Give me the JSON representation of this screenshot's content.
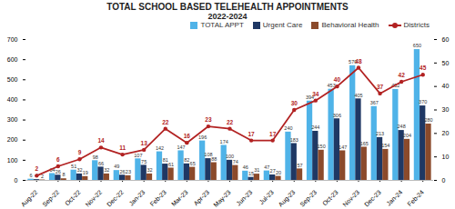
{
  "chart_data": {
    "type": "bar",
    "title": "TOTAL SCHOOL BASED TELEHEALTH APPOINTMENTS",
    "subtitle": "2022-2024",
    "categories": [
      "Aug-22",
      "Sep-22",
      "Oct-22",
      "Nov-22",
      "Dec-22",
      "Jan-23",
      "Feb-23",
      "Mar-23",
      "Apr-23",
      "May-23",
      "Jun-23",
      "Jul-23",
      "Aug-23",
      "Sep-23",
      "Oct-23",
      "Nov-23",
      "Dec-23",
      "Jan-24",
      "Feb-24"
    ],
    "series": [
      {
        "name": "TOTAL APPT",
        "color": "#4fb3e8",
        "type": "bar",
        "values": [
          6,
          34,
          51,
          98,
          49,
          107,
          142,
          147,
          196,
          174,
          46,
          47,
          240,
          394,
          453,
          570,
          367,
          452,
          650
        ]
      },
      {
        "name": "Urgent Care",
        "color": "#1f3864",
        "type": "bar",
        "values": [
          4,
          26,
          32,
          66,
          26,
          75,
          81,
          82,
          108,
          100,
          15,
          27,
          183,
          244,
          306,
          405,
          213,
          248,
          370
        ]
      },
      {
        "name": "Behavioral Health",
        "color": "#8b4a2b",
        "type": "bar",
        "values": [
          2,
          8,
          19,
          32,
          23,
          32,
          61,
          65,
          88,
          74,
          31,
          20,
          57,
          150,
          147,
          165,
          154,
          204,
          280
        ]
      },
      {
        "name": "Districts",
        "color": "#b22222",
        "type": "line",
        "marker": "circle",
        "axis": "y2",
        "values": [
          2,
          6,
          9,
          14,
          11,
          13,
          22,
          16,
          23,
          22,
          17,
          17,
          30,
          34,
          40,
          48,
          37,
          42,
          45
        ]
      }
    ],
    "ylim": [
      0,
      700
    ],
    "yticks": [
      0,
      100,
      200,
      300,
      400,
      500,
      600,
      700
    ],
    "y2lim": [
      0,
      60
    ],
    "y2ticks": [
      0,
      10,
      20,
      30,
      40,
      50,
      60
    ],
    "data_labels": true,
    "legend": "top-right"
  }
}
